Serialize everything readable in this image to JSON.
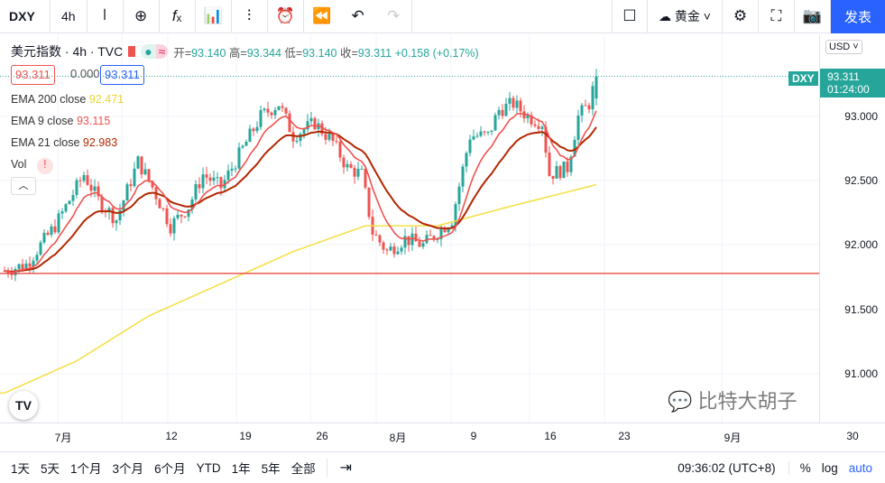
{
  "toolbar": {
    "symbol": "DXY",
    "interval": "4h",
    "theme_label": "黄金",
    "publish": "发表"
  },
  "legend": {
    "title": "美元指数 · 4h · TVC",
    "open_label": "开=",
    "open": "93.140",
    "high_label": "高=",
    "high": "93.344",
    "low_label": "低=",
    "low": "93.140",
    "close_label": "收=",
    "close": "93.311",
    "change": "+0.158 (+0.17%)"
  },
  "quote": {
    "bid": "93.311",
    "spread": "0.000",
    "ask": "93.311"
  },
  "indicators": [
    {
      "name": "EMA 200 close",
      "value": "92.471",
      "color": "#f5e04a"
    },
    {
      "name": "EMA 9 close",
      "value": "93.115",
      "color": "#ef5350"
    },
    {
      "name": "EMA 21 close",
      "value": "92.983",
      "color": "#b22800"
    },
    {
      "name": "Vol",
      "value": "!"
    }
  ],
  "price_axis": {
    "currency": "USD",
    "labels": [
      "93.000",
      "92.500",
      "92.000",
      "91.500",
      "91.000"
    ],
    "tag_symbol": "DXY",
    "tag_price": "93.311",
    "tag_countdown": "01:24:00"
  },
  "time_axis": [
    "7月",
    "12",
    "19",
    "26",
    "8月",
    "9",
    "16",
    "23",
    "9月",
    "30"
  ],
  "bottom": {
    "ranges": [
      "1天",
      "5天",
      "1个月",
      "3个月",
      "6个月",
      "YTD",
      "1年",
      "5年",
      "全部"
    ],
    "clock": "09:36:02 (UTC+8)",
    "pct": "%",
    "log": "log",
    "auto": "auto"
  },
  "watermark": "比特大胡子",
  "chart_data": {
    "type": "candlestick",
    "ylim": [
      90.75,
      93.6
    ],
    "last": 93.311,
    "hline": 91.78,
    "close_path": [
      [
        0,
        91.8
      ],
      [
        6,
        91.85
      ],
      [
        14,
        92.15
      ],
      [
        22,
        92.55
      ],
      [
        26,
        92.35
      ],
      [
        31,
        92.2
      ],
      [
        37,
        92.65
      ],
      [
        41,
        92.45
      ],
      [
        46,
        92.15
      ],
      [
        51,
        92.3
      ],
      [
        55,
        92.55
      ],
      [
        60,
        92.45
      ],
      [
        66,
        92.75
      ],
      [
        71,
        93.0
      ],
      [
        76,
        93.1
      ],
      [
        80,
        92.85
      ],
      [
        86,
        92.95
      ],
      [
        91,
        92.8
      ],
      [
        95,
        92.6
      ],
      [
        99,
        92.55
      ],
      [
        102,
        92.1
      ],
      [
        106,
        91.95
      ],
      [
        111,
        92.05
      ],
      [
        116,
        92.0
      ],
      [
        120,
        92.1
      ],
      [
        124,
        92.2
      ],
      [
        129,
        92.85
      ],
      [
        134,
        92.85
      ],
      [
        137,
        93.05
      ],
      [
        141,
        93.1
      ],
      [
        145,
        93.0
      ],
      [
        149,
        92.95
      ],
      [
        151,
        92.55
      ],
      [
        156,
        92.6
      ],
      [
        159,
        93.0
      ],
      [
        162,
        93.1
      ],
      [
        164,
        93.311
      ]
    ],
    "ema200_path": [
      [
        0,
        90.85
      ],
      [
        20,
        91.1
      ],
      [
        40,
        91.45
      ],
      [
        60,
        91.7
      ],
      [
        80,
        91.95
      ],
      [
        100,
        92.15
      ],
      [
        120,
        92.15
      ],
      [
        140,
        92.3
      ],
      [
        164,
        92.47
      ]
    ]
  }
}
